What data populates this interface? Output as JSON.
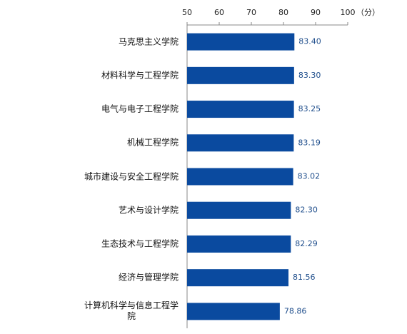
{
  "chart_data": {
    "type": "hbar",
    "unit_label": "（分）",
    "categories": [
      "马克思主义学院",
      "材料科学与工程学院",
      "电气与电子工程学院",
      "机械工程学院",
      "城市建设与安全工程学院",
      "艺术与设计学院",
      "生态技术与工程学院",
      "经济与管理学院",
      "计算机科学与信息工程学院"
    ],
    "values": [
      83.4,
      83.3,
      83.25,
      83.19,
      83.02,
      82.3,
      82.29,
      81.56,
      78.86
    ],
    "value_labels": [
      "83.40",
      "83.30",
      "83.25",
      "83.19",
      "83.02",
      "82.30",
      "82.29",
      "81.56",
      "78.86"
    ],
    "color": "#0a4a9f",
    "xlim": [
      50,
      100
    ],
    "xticks": [
      50,
      60,
      70,
      80,
      90,
      100
    ]
  }
}
